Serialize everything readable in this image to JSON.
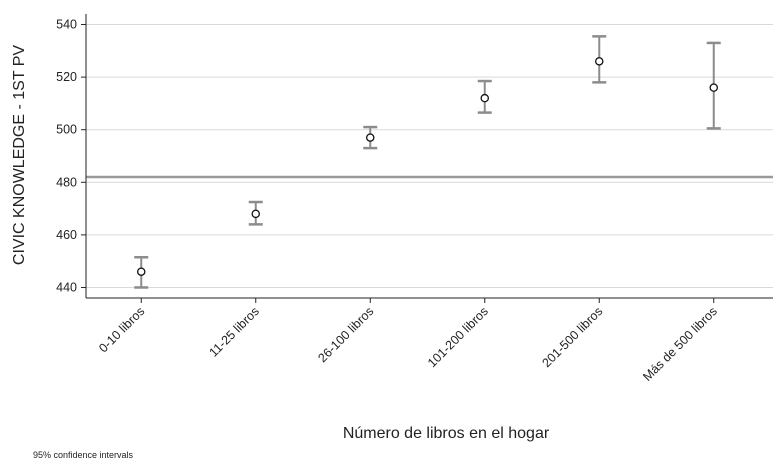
{
  "chart_data": {
    "type": "scatter",
    "title": "",
    "ylabel": "CIVIC KNOWLEDGE - 1ST PV",
    "xlabel": "Número de libros en el hogar",
    "footnote": "95% confidence intervals",
    "ylim": [
      436,
      544
    ],
    "yticks": [
      440,
      460,
      480,
      500,
      520,
      540
    ],
    "grid": true,
    "reference_line": 482,
    "categories": [
      "0-10 libros",
      "11-25 libros",
      "26-100 libros",
      "101-200 libros",
      "201-500 libros",
      "Más de 500 libros"
    ],
    "series": [
      {
        "values": [
          446,
          468,
          497,
          512,
          526,
          516
        ],
        "ci_low": [
          440,
          464,
          493,
          506.5,
          518,
          500.5
        ],
        "ci_high": [
          451.5,
          472.5,
          501,
          518.5,
          535.5,
          533
        ]
      }
    ],
    "colors": {
      "errorbar": "#8c8c8c",
      "marker_fill": "#ffffff",
      "marker_stroke": "#111111",
      "grid": "#d9d9d9",
      "axis": "#222222",
      "reference_line": "#9a9a9a"
    }
  }
}
